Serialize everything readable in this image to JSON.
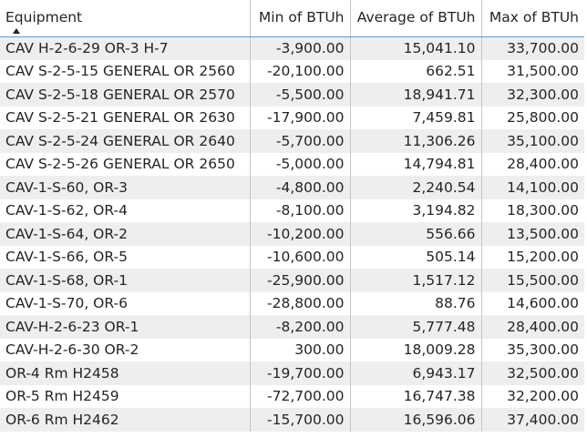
{
  "table": {
    "columns": [
      "Equipment",
      "Min of BTUh",
      "Average of BTUh",
      "Max of BTUh"
    ],
    "sort": {
      "column": "Equipment",
      "direction": "ascending"
    },
    "rows": [
      [
        "CAV H-2-6-29 OR-3 H-7",
        "-3,900.00",
        "15,041.10",
        "33,700.00"
      ],
      [
        "CAV S-2-5-15 GENERAL OR 2560",
        "-20,100.00",
        "662.51",
        "31,500.00"
      ],
      [
        "CAV S-2-5-18 GENERAL OR 2570",
        "-5,500.00",
        "18,941.71",
        "32,300.00"
      ],
      [
        "CAV S-2-5-21 GENERAL OR 2630",
        "-17,900.00",
        "7,459.81",
        "25,800.00"
      ],
      [
        "CAV S-2-5-24 GENERAL OR 2640",
        "-5,700.00",
        "11,306.26",
        "35,100.00"
      ],
      [
        "CAV S-2-5-26 GENERAL OR 2650",
        "-5,000.00",
        "14,794.81",
        "28,400.00"
      ],
      [
        "CAV-1-S-60, OR-3",
        "-4,800.00",
        "2,240.54",
        "14,100.00"
      ],
      [
        "CAV-1-S-62, OR-4",
        "-8,100.00",
        "3,194.82",
        "18,300.00"
      ],
      [
        "CAV-1-S-64, OR-2",
        "-10,200.00",
        "556.66",
        "13,500.00"
      ],
      [
        "CAV-1-S-66, OR-5",
        "-10,600.00",
        "505.14",
        "15,200.00"
      ],
      [
        "CAV-1-S-68, OR-1",
        "-25,900.00",
        "1,517.12",
        "15,500.00"
      ],
      [
        "CAV-1-S-70, OR-6",
        "-28,800.00",
        "88.76",
        "14,600.00"
      ],
      [
        "CAV-H-2-6-23 OR-1",
        "-8,200.00",
        "5,777.48",
        "28,400.00"
      ],
      [
        "CAV-H-2-6-30 OR-2",
        "300.00",
        "18,009.28",
        "35,300.00"
      ],
      [
        "OR-4 Rm H2458",
        "-19,700.00",
        "6,943.17",
        "32,500.00"
      ],
      [
        "OR-5 Rm H2459",
        "-72,700.00",
        "16,747.38",
        "32,200.00"
      ],
      [
        "OR-6 Rm H2462",
        "-15,700.00",
        "16,596.06",
        "37,400.00"
      ]
    ]
  },
  "colors": {
    "header_underline": "#5b9bd5",
    "row_band": "#eeeeee",
    "grid_line": "#c8c6c4",
    "text": "#252423"
  },
  "icons": {
    "sort": "sort-ascending-arrow"
  }
}
